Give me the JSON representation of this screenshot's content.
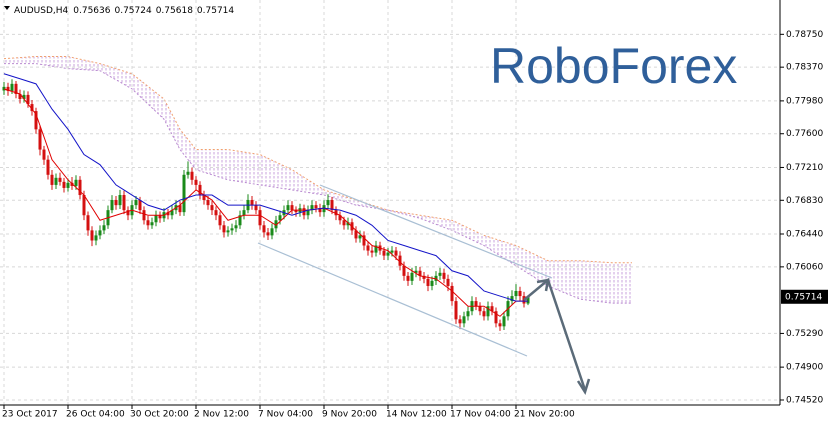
{
  "chart_data": {
    "type": "candlestick",
    "title": "AUDUSD,H4",
    "watermark": "RoboForex",
    "up_color": "#1a8a1a",
    "down_color": "#d41010",
    "grid": true,
    "ylim": [
      0.74462,
      0.79147
    ],
    "yticks": [
      {
        "value": 0.7875,
        "label": "0.78750"
      },
      {
        "value": 0.7837,
        "label": "0.78370"
      },
      {
        "value": 0.7798,
        "label": "0.77980"
      },
      {
        "value": 0.776,
        "label": "0.77600"
      },
      {
        "value": 0.7721,
        "label": "0.77210"
      },
      {
        "value": 0.7683,
        "label": "0.76830"
      },
      {
        "value": 0.7644,
        "label": "0.76440"
      },
      {
        "value": 0.7606,
        "label": "0.76060"
      },
      {
        "value": 0.7529,
        "label": "0.75290"
      },
      {
        "value": 0.749,
        "label": "0.74900"
      },
      {
        "value": 0.7452,
        "label": "0.74520"
      }
    ],
    "categories": [
      "23 Oct 2017",
      null,
      null,
      null,
      null,
      null,
      null,
      null,
      null,
      null,
      null,
      null,
      null,
      null,
      null,
      null,
      "26 Oct 04:00",
      null,
      null,
      null,
      null,
      null,
      null,
      null,
      null,
      null,
      null,
      null,
      null,
      null,
      null,
      null,
      "30 Oct 20:00",
      null,
      null,
      null,
      null,
      null,
      null,
      null,
      null,
      null,
      null,
      null,
      null,
      null,
      null,
      null,
      "2 Nov 12:00",
      null,
      null,
      null,
      null,
      null,
      null,
      null,
      null,
      null,
      null,
      null,
      null,
      null,
      null,
      null,
      "7 Nov 04:00",
      null,
      null,
      null,
      null,
      null,
      null,
      null,
      null,
      null,
      null,
      null,
      null,
      null,
      null,
      null,
      "9 Nov 20:00",
      null,
      null,
      null,
      null,
      null,
      null,
      null,
      null,
      null,
      null,
      null,
      null,
      null,
      null,
      null,
      "14 Nov 12:00",
      null,
      null,
      null,
      null,
      null,
      null,
      null,
      null,
      null,
      null,
      null,
      null,
      null,
      null,
      null,
      "17 Nov 04:00",
      null,
      null,
      null,
      null,
      null,
      null,
      null,
      null,
      null,
      null,
      null,
      null,
      null,
      null,
      null,
      "21 Nov 20:00",
      null,
      null,
      null
    ],
    "ohlc": [
      [
        0.781,
        0.782,
        0.7805,
        0.78142
      ],
      [
        0.78142,
        0.7819,
        0.7804,
        0.78095
      ],
      [
        0.78095,
        0.7823,
        0.7806,
        0.78177
      ],
      [
        0.78177,
        0.7821,
        0.7801,
        0.7806
      ],
      [
        0.7806,
        0.7811,
        0.7795,
        0.78002
      ],
      [
        0.78002,
        0.781,
        0.7796,
        0.78049
      ],
      [
        0.78049,
        0.7809,
        0.779,
        0.77943
      ],
      [
        0.77943,
        0.7799,
        0.7781,
        0.77862
      ],
      [
        0.77862,
        0.779,
        0.776,
        0.77651
      ],
      [
        0.77651,
        0.777,
        0.7735,
        0.77417
      ],
      [
        0.77417,
        0.7746,
        0.7724,
        0.773
      ],
      [
        0.773,
        0.7735,
        0.7707,
        0.77125
      ],
      [
        0.77125,
        0.7718,
        0.7695,
        0.77008
      ],
      [
        0.77008,
        0.7714,
        0.7696,
        0.7709
      ],
      [
        0.7709,
        0.7715,
        0.77,
        0.77043
      ],
      [
        0.77043,
        0.7709,
        0.7692,
        0.76973
      ],
      [
        0.76973,
        0.7708,
        0.7693,
        0.77032
      ],
      [
        0.77032,
        0.771,
        0.7695,
        0.76996
      ],
      [
        0.76996,
        0.7712,
        0.7695,
        0.77067
      ],
      [
        0.77067,
        0.7711,
        0.7684,
        0.76891
      ],
      [
        0.76891,
        0.7694,
        0.766,
        0.76657
      ],
      [
        0.76657,
        0.767,
        0.7642,
        0.76482
      ],
      [
        0.76482,
        0.7653,
        0.763,
        0.76365
      ],
      [
        0.76365,
        0.7648,
        0.7631,
        0.76424
      ],
      [
        0.76424,
        0.7654,
        0.7638,
        0.76482
      ],
      [
        0.76482,
        0.766,
        0.7644,
        0.76541
      ],
      [
        0.76541,
        0.7677,
        0.765,
        0.76716
      ],
      [
        0.76716,
        0.7689,
        0.7668,
        0.76833
      ],
      [
        0.76833,
        0.7688,
        0.7672,
        0.76774
      ],
      [
        0.76774,
        0.7695,
        0.7673,
        0.76891
      ],
      [
        0.76891,
        0.7694,
        0.7667,
        0.76716
      ],
      [
        0.76716,
        0.7676,
        0.766,
        0.76657
      ],
      [
        0.76657,
        0.7683,
        0.7661,
        0.76774
      ],
      [
        0.76774,
        0.7688,
        0.7673,
        0.76833
      ],
      [
        0.76833,
        0.7687,
        0.7667,
        0.76716
      ],
      [
        0.76716,
        0.7676,
        0.7655,
        0.76599
      ],
      [
        0.76599,
        0.7665,
        0.7649,
        0.76541
      ],
      [
        0.76541,
        0.7663,
        0.765,
        0.76576
      ],
      [
        0.76576,
        0.7671,
        0.7653,
        0.76657
      ],
      [
        0.76657,
        0.767,
        0.7657,
        0.76622
      ],
      [
        0.76622,
        0.7674,
        0.7658,
        0.76693
      ],
      [
        0.76693,
        0.7673,
        0.7661,
        0.76657
      ],
      [
        0.76657,
        0.7677,
        0.7661,
        0.76716
      ],
      [
        0.76716,
        0.7683,
        0.7667,
        0.76774
      ],
      [
        0.76774,
        0.7682,
        0.7665,
        0.76693
      ],
      [
        0.76693,
        0.7718,
        0.7665,
        0.77125
      ],
      [
        0.77125,
        0.7728,
        0.7708,
        0.7716
      ],
      [
        0.7716,
        0.7721,
        0.7701,
        0.77067
      ],
      [
        0.77067,
        0.7711,
        0.7695,
        0.77008
      ],
      [
        0.77008,
        0.7705,
        0.7684,
        0.76891
      ],
      [
        0.76891,
        0.7694,
        0.7678,
        0.76833
      ],
      [
        0.76833,
        0.7688,
        0.7672,
        0.76774
      ],
      [
        0.76774,
        0.7682,
        0.7666,
        0.76716
      ],
      [
        0.76716,
        0.7676,
        0.766,
        0.76657
      ],
      [
        0.76657,
        0.767,
        0.7649,
        0.76541
      ],
      [
        0.76541,
        0.7659,
        0.764,
        0.76459
      ],
      [
        0.76459,
        0.7653,
        0.7641,
        0.76482
      ],
      [
        0.76482,
        0.7656,
        0.7643,
        0.76506
      ],
      [
        0.76506,
        0.766,
        0.7646,
        0.76541
      ],
      [
        0.76541,
        0.7671,
        0.765,
        0.76657
      ],
      [
        0.76657,
        0.7677,
        0.7661,
        0.76716
      ],
      [
        0.76716,
        0.769,
        0.7668,
        0.76833
      ],
      [
        0.76833,
        0.7688,
        0.7672,
        0.76774
      ],
      [
        0.76774,
        0.7682,
        0.7667,
        0.76716
      ],
      [
        0.76716,
        0.7676,
        0.7649,
        0.76541
      ],
      [
        0.76541,
        0.7659,
        0.764,
        0.76459
      ],
      [
        0.76459,
        0.7651,
        0.7637,
        0.76424
      ],
      [
        0.76424,
        0.7656,
        0.7638,
        0.76506
      ],
      [
        0.76506,
        0.7665,
        0.7646,
        0.76599
      ],
      [
        0.76599,
        0.7671,
        0.7655,
        0.76657
      ],
      [
        0.76657,
        0.7677,
        0.7661,
        0.76716
      ],
      [
        0.76716,
        0.7683,
        0.7667,
        0.76774
      ],
      [
        0.76774,
        0.7682,
        0.7667,
        0.76716
      ],
      [
        0.76716,
        0.7676,
        0.7664,
        0.76693
      ],
      [
        0.76693,
        0.7679,
        0.7664,
        0.76739
      ],
      [
        0.76739,
        0.7678,
        0.7661,
        0.76657
      ],
      [
        0.76657,
        0.7677,
        0.7661,
        0.76716
      ],
      [
        0.76716,
        0.7683,
        0.7667,
        0.76774
      ],
      [
        0.76774,
        0.7682,
        0.7669,
        0.76739
      ],
      [
        0.76739,
        0.7679,
        0.7664,
        0.76693
      ],
      [
        0.76693,
        0.7683,
        0.7664,
        0.76774
      ],
      [
        0.76774,
        0.769,
        0.7673,
        0.76833
      ],
      [
        0.76833,
        0.7687,
        0.7667,
        0.76716
      ],
      [
        0.76716,
        0.7676,
        0.766,
        0.76657
      ],
      [
        0.76657,
        0.767,
        0.7655,
        0.76599
      ],
      [
        0.76599,
        0.7664,
        0.7649,
        0.76541
      ],
      [
        0.76541,
        0.7663,
        0.7649,
        0.76576
      ],
      [
        0.76576,
        0.7662,
        0.7643,
        0.76482
      ],
      [
        0.76482,
        0.7653,
        0.7634,
        0.76389
      ],
      [
        0.76389,
        0.7648,
        0.7634,
        0.76424
      ],
      [
        0.76424,
        0.7647,
        0.7625,
        0.76307
      ],
      [
        0.76307,
        0.7635,
        0.7619,
        0.76248
      ],
      [
        0.76248,
        0.763,
        0.7617,
        0.76225
      ],
      [
        0.76225,
        0.7636,
        0.7618,
        0.76307
      ],
      [
        0.76307,
        0.7635,
        0.762,
        0.76248
      ],
      [
        0.76248,
        0.7629,
        0.7614,
        0.7619
      ],
      [
        0.7619,
        0.7628,
        0.7614,
        0.76225
      ],
      [
        0.76225,
        0.763,
        0.7618,
        0.76248
      ],
      [
        0.76248,
        0.7629,
        0.7614,
        0.7619
      ],
      [
        0.7619,
        0.7624,
        0.7602,
        0.76073
      ],
      [
        0.76073,
        0.7612,
        0.759,
        0.75956
      ],
      [
        0.75956,
        0.76,
        0.7584,
        0.75898
      ],
      [
        0.75898,
        0.7605,
        0.7585,
        0.75991
      ],
      [
        0.75991,
        0.7607,
        0.7594,
        0.76015
      ],
      [
        0.76015,
        0.7606,
        0.759,
        0.75956
      ],
      [
        0.75956,
        0.76,
        0.7587,
        0.75921
      ],
      [
        0.75921,
        0.7597,
        0.7578,
        0.75839
      ],
      [
        0.75839,
        0.7595,
        0.7579,
        0.75898
      ],
      [
        0.75898,
        0.7601,
        0.7585,
        0.75956
      ],
      [
        0.75956,
        0.7605,
        0.7591,
        0.75991
      ],
      [
        0.75991,
        0.7604,
        0.7587,
        0.75921
      ],
      [
        0.75921,
        0.7597,
        0.7578,
        0.75839
      ],
      [
        0.75839,
        0.7588,
        0.7561,
        0.75664
      ],
      [
        0.75664,
        0.7571,
        0.754,
        0.75453
      ],
      [
        0.75453,
        0.755,
        0.7534,
        0.75407
      ],
      [
        0.75407,
        0.7554,
        0.7536,
        0.75488
      ],
      [
        0.75488,
        0.756,
        0.7544,
        0.75547
      ],
      [
        0.75547,
        0.7572,
        0.755,
        0.75664
      ],
      [
        0.75664,
        0.7571,
        0.7556,
        0.75605
      ],
      [
        0.75605,
        0.7565,
        0.755,
        0.75547
      ],
      [
        0.75547,
        0.7559,
        0.7544,
        0.75488
      ],
      [
        0.75488,
        0.7566,
        0.7544,
        0.75605
      ],
      [
        0.75605,
        0.7565,
        0.755,
        0.75547
      ],
      [
        0.75547,
        0.7559,
        0.7536,
        0.75407
      ],
      [
        0.75407,
        0.7545,
        0.7532,
        0.75372
      ],
      [
        0.75372,
        0.7554,
        0.7533,
        0.75488
      ],
      [
        0.75488,
        0.7572,
        0.7544,
        0.75664
      ],
      [
        0.75664,
        0.7579,
        0.7562,
        0.75722
      ],
      [
        0.75722,
        0.7586,
        0.7568,
        0.75781
      ],
      [
        0.75781,
        0.7583,
        0.7567,
        0.75722
      ],
      [
        0.75722,
        0.7577,
        0.7559,
        0.75636
      ],
      [
        0.75636,
        0.75724,
        0.75618,
        0.75714
      ]
    ],
    "lines": [
      {
        "color": "#e00000",
        "x": [
          0,
          4,
          8,
          12,
          16,
          20,
          24,
          28,
          32,
          36,
          40,
          44,
          48,
          52,
          56,
          60,
          64,
          68,
          72,
          76,
          80,
          84,
          88,
          92,
          96,
          100,
          104,
          108,
          112,
          116,
          120,
          124,
          128,
          131
        ],
        "values": [
          0.78119,
          0.7806,
          0.77826,
          0.773,
          0.77067,
          0.76891,
          0.76599,
          0.76657,
          0.76716,
          0.76657,
          0.76657,
          0.76774,
          0.7695,
          0.76833,
          0.76599,
          0.76657,
          0.76657,
          0.76541,
          0.76716,
          0.76716,
          0.76739,
          0.76657,
          0.76482,
          0.76307,
          0.76248,
          0.76073,
          0.75956,
          0.75921,
          0.75781,
          0.75605,
          0.75605,
          0.75488,
          0.75664,
          0.75664
        ]
      },
      {
        "color": "#1414c8",
        "x": [
          0,
          4,
          8,
          12,
          16,
          20,
          24,
          28,
          32,
          36,
          40,
          44,
          48,
          52,
          56,
          60,
          64,
          68,
          72,
          76,
          80,
          84,
          88,
          92,
          96,
          100,
          104,
          108,
          112,
          116,
          120,
          124,
          128,
          131
        ],
        "values": [
          0.78294,
          0.78236,
          0.78177,
          0.77885,
          0.77651,
          0.77359,
          0.77242,
          0.77008,
          0.76891,
          0.76774,
          0.76716,
          0.76833,
          0.76891,
          0.76891,
          0.76774,
          0.76774,
          0.76774,
          0.76716,
          0.76657,
          0.76716,
          0.76739,
          0.76716,
          0.76657,
          0.76541,
          0.76365,
          0.76307,
          0.76248,
          0.7619,
          0.76015,
          0.75956,
          0.75781,
          0.75722,
          0.75664,
          0.75664
        ]
      }
    ],
    "cloud": {
      "upper_color": "#f0a070",
      "lower_color": "#b98ad0",
      "x": [
        0,
        8,
        16,
        24,
        32,
        40,
        44,
        48,
        56,
        64,
        72,
        80,
        88,
        96,
        104,
        112,
        120,
        128,
        136,
        144,
        152,
        157
      ],
      "upper": [
        0.78469,
        0.78493,
        0.78493,
        0.78411,
        0.78294,
        0.78002,
        0.77651,
        0.77417,
        0.77417,
        0.77359,
        0.77184,
        0.7695,
        0.76833,
        0.76716,
        0.76657,
        0.76599,
        0.76424,
        0.76307,
        0.76131,
        0.76131,
        0.76108,
        0.76108
      ],
      "lower": [
        0.78411,
        0.78411,
        0.78353,
        0.78329,
        0.78119,
        0.77768,
        0.77417,
        0.77184,
        0.77067,
        0.77008,
        0.7695,
        0.76891,
        0.76774,
        0.76716,
        0.76622,
        0.76482,
        0.76307,
        0.76073,
        0.75839,
        0.75687,
        0.7564,
        0.7564
      ]
    }
  }
}
